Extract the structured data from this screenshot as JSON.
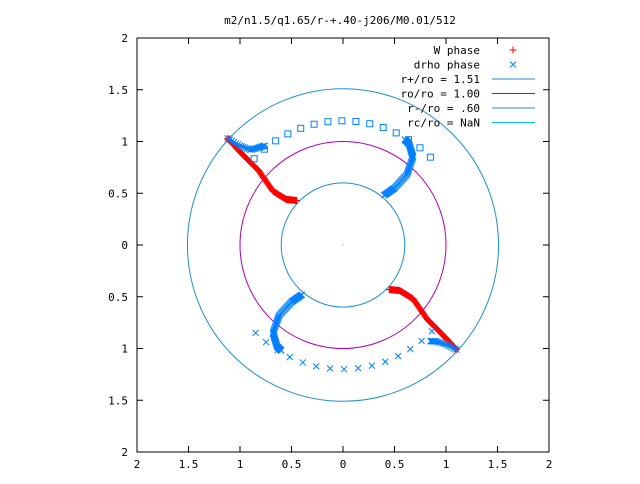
{
  "chart_data": {
    "type": "scatter",
    "title": "m2/n1.5/q1.65/r-+.40-j206/M0.01/512",
    "xlim": [
      -2,
      2
    ],
    "ylim": [
      -2,
      2
    ],
    "x_ticks": [
      -2,
      -1.5,
      -1,
      -0.5,
      0,
      0.5,
      1,
      1.5,
      2
    ],
    "y_ticks": [
      -2,
      -1.5,
      -1,
      -0.5,
      0,
      0.5,
      1,
      1.5,
      2
    ],
    "x_tick_labels": [
      "2",
      "1.5",
      "1",
      "0.5",
      "0",
      "0.5",
      "1",
      "1.5",
      "2"
    ],
    "y_tick_labels": [
      "2",
      "1.5",
      "1",
      "0.5",
      "0",
      "0.5",
      "1",
      "1.5",
      "2"
    ],
    "grid": false,
    "legend_position": "top-right",
    "colors": {
      "w_phase": "#ff0000",
      "drho_phase": "#0080ff",
      "r_plus": "#1f8fcf",
      "ro": "#b000b0",
      "r_minus": "#1f8fcf",
      "rc": "#00c0ff"
    },
    "legend": [
      {
        "label": "W phase",
        "kind": "plus",
        "color": "#ff0000"
      },
      {
        "label": "drho phase",
        "kind": "cross",
        "color": "#0080ff"
      },
      {
        "label": "r+/ro = 1.51",
        "kind": "line",
        "color": "#1f8fcf"
      },
      {
        "label": "ro/ro = 1.00",
        "kind": "line",
        "color": "#b000b0"
      },
      {
        "label": "r-/ro = .60",
        "kind": "line",
        "color": "#1f8fcf"
      },
      {
        "label": "rc/ro = NaN",
        "kind": "line",
        "color": "#00c0ff"
      }
    ],
    "circles": [
      {
        "name": "r+/ro",
        "radius": 1.51,
        "color": "#1f8fcf"
      },
      {
        "name": "ro/ro",
        "radius": 1.0,
        "color": "#b000b0"
      },
      {
        "name": "r-/ro",
        "radius": 0.6,
        "color": "#1f8fcf"
      }
    ],
    "w_phase_branches": [
      {
        "rmin": 0.6,
        "rmax": 1.51,
        "theta_start_deg": 45,
        "theta_end_deg": 137,
        "stretch": 3.0
      },
      {
        "rmin": 0.6,
        "rmax": 1.51,
        "theta_start_deg": -45,
        "theta_end_deg": -43,
        "stretch": 3.0
      }
    ],
    "drho_phase_branches": [
      {
        "rmin": 0.6,
        "rmax": 1.51,
        "theta_start_deg": 225,
        "theta_end_deg": 317,
        "stretch": 3.0
      }
    ],
    "drho_square_arc": {
      "radius": 1.2,
      "theta_start_deg": 45,
      "theta_end_deg": 137
    }
  }
}
